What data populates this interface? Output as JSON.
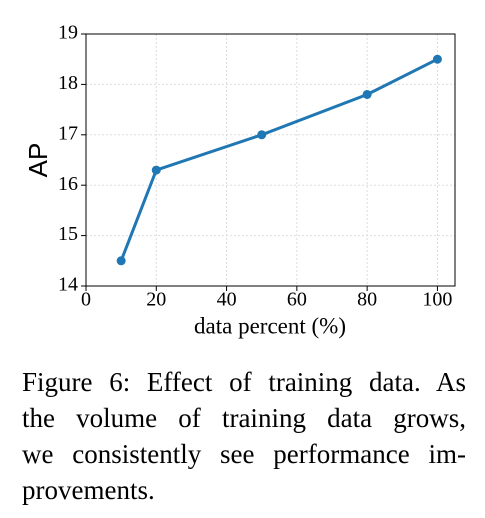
{
  "chart_data": {
    "type": "line",
    "x_label": "data percent (%)",
    "y_label": "AP",
    "x": [
      10,
      20,
      50,
      80,
      100
    ],
    "series": [
      {
        "name": "AP",
        "color": "#1f77b4",
        "values": [
          14.5,
          16.3,
          17.0,
          17.8,
          18.5
        ]
      }
    ],
    "xlim": [
      0,
      105
    ],
    "xticks": [
      0,
      20,
      40,
      60,
      80,
      100
    ],
    "ylim": [
      14,
      19
    ],
    "yticks": [
      14,
      15,
      16,
      17,
      18,
      19
    ],
    "grid": true
  },
  "caption": {
    "lines": [
      "Figure 6: Effect of training data. As",
      "the volume of training data grows,",
      "we consistently see performance im-",
      "provements."
    ]
  }
}
